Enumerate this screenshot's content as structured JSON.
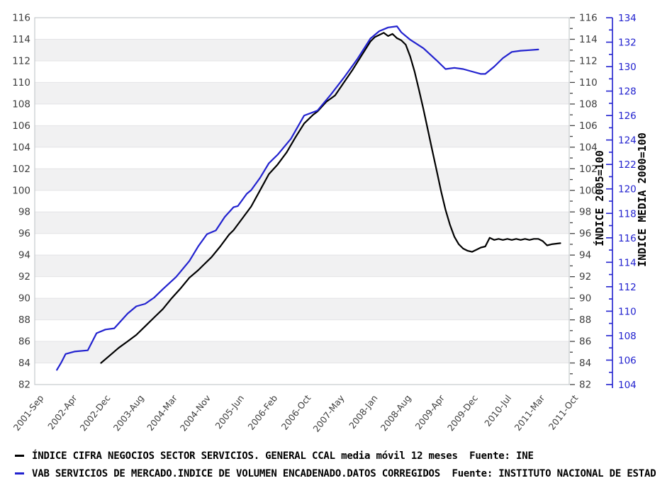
{
  "chart_data": {
    "type": "line",
    "title": "",
    "x_axis": {
      "labels": [
        "2001-Sep",
        "2002-Apr",
        "2002-Dec",
        "2003-Aug",
        "2004-Mar",
        "2004-Nov",
        "2005-Jun",
        "2006-Feb",
        "2006-Oct",
        "2007-May",
        "2008-Jan",
        "2008-Aug",
        "2009-Apr",
        "2009-Dec",
        "2010-Jul",
        "2011-Mar",
        "2011-Oct"
      ],
      "months_total": 121,
      "label_rotation_deg": -52
    },
    "left_axis": {
      "min": 82,
      "max": 116,
      "tick_step": 2,
      "ticks": [
        116,
        114,
        112,
        110,
        108,
        106,
        104,
        102,
        100,
        98,
        96,
        94,
        92,
        90,
        88,
        86,
        84,
        82
      ]
    },
    "right_axis": {
      "min": 82,
      "max": 116,
      "tick_step": 2,
      "ticks": [
        116,
        114,
        112,
        110,
        108,
        106,
        104,
        102,
        100,
        98,
        96,
        94,
        92,
        90,
        88,
        86,
        84,
        82
      ],
      "title": "ÍNDICE 2005=100"
    },
    "right_axis2": {
      "min": 104,
      "max": 134,
      "tick_step": 2,
      "ticks": [
        134,
        132,
        130,
        128,
        126,
        124,
        122,
        120,
        118,
        116,
        114,
        112,
        110,
        108,
        106,
        104
      ],
      "title": "INDICE MEDIA 2000=100",
      "color": "#2222cf"
    },
    "series": [
      {
        "name": "ÍNDICE CIFRA NEGOCIOS SECTOR SERVICIOS. GENERAL CCAL media móvil 12 meses",
        "source": "Fuente: INE",
        "color": "#000000",
        "axis": "left",
        "points": [
          [
            15,
            84.0
          ],
          [
            17,
            84.7
          ],
          [
            19,
            85.4
          ],
          [
            21,
            86.0
          ],
          [
            23,
            86.6
          ],
          [
            25,
            87.4
          ],
          [
            27,
            88.2
          ],
          [
            29,
            89.0
          ],
          [
            31,
            90.0
          ],
          [
            33,
            90.9
          ],
          [
            35,
            91.9
          ],
          [
            37,
            92.6
          ],
          [
            38,
            93.0
          ],
          [
            40,
            93.8
          ],
          [
            42,
            94.8
          ],
          [
            44,
            95.9
          ],
          [
            45,
            96.3
          ],
          [
            47,
            97.4
          ],
          [
            49,
            98.5
          ],
          [
            51,
            100.0
          ],
          [
            53,
            101.5
          ],
          [
            55,
            102.4
          ],
          [
            57,
            103.5
          ],
          [
            59,
            104.9
          ],
          [
            61,
            106.2
          ],
          [
            63,
            107.0
          ],
          [
            64,
            107.3
          ],
          [
            66,
            108.2
          ],
          [
            68,
            108.8
          ],
          [
            70,
            110.0
          ],
          [
            72,
            111.2
          ],
          [
            74,
            112.5
          ],
          [
            76,
            113.8
          ],
          [
            77,
            114.2
          ],
          [
            78,
            114.4
          ],
          [
            79,
            114.6
          ],
          [
            80,
            114.3
          ],
          [
            81,
            114.5
          ],
          [
            82,
            114.1
          ],
          [
            83,
            113.9
          ],
          [
            84,
            113.5
          ],
          [
            85,
            112.4
          ],
          [
            86,
            111.0
          ],
          [
            87,
            109.3
          ],
          [
            88,
            107.5
          ],
          [
            89,
            105.6
          ],
          [
            90,
            103.7
          ],
          [
            91,
            101.8
          ],
          [
            92,
            99.9
          ],
          [
            93,
            98.2
          ],
          [
            94,
            96.8
          ],
          [
            95,
            95.7
          ],
          [
            96,
            95.0
          ],
          [
            97,
            94.6
          ],
          [
            98,
            94.4
          ],
          [
            99,
            94.3
          ],
          [
            100,
            94.5
          ],
          [
            101,
            94.7
          ],
          [
            102,
            94.8
          ],
          [
            103,
            95.6
          ],
          [
            104,
            95.4
          ],
          [
            105,
            95.5
          ],
          [
            106,
            95.4
          ],
          [
            107,
            95.5
          ],
          [
            108,
            95.4
          ],
          [
            109,
            95.5
          ],
          [
            110,
            95.4
          ],
          [
            111,
            95.5
          ],
          [
            112,
            95.4
          ],
          [
            113,
            95.5
          ],
          [
            114,
            95.5
          ],
          [
            115,
            95.3
          ],
          [
            116,
            94.9
          ],
          [
            117,
            95.0
          ],
          [
            119,
            95.1
          ]
        ]
      },
      {
        "name": "VAB SERVICIOS DE MERCADO.INDICE DE VOLUMEN ENCADENADO.DATOS CORREGIDOS",
        "source": "Fuente: INSTITUTO NACIONAL DE ESTAD",
        "color": "#2222cf",
        "axis": "right2",
        "points": [
          [
            5,
            105.2
          ],
          [
            6,
            105.8
          ],
          [
            7,
            106.5
          ],
          [
            9,
            106.7
          ],
          [
            12,
            106.8
          ],
          [
            13,
            107.5
          ],
          [
            14,
            108.2
          ],
          [
            16,
            108.5
          ],
          [
            18,
            108.6
          ],
          [
            21,
            109.8
          ],
          [
            23,
            110.4
          ],
          [
            25,
            110.6
          ],
          [
            27,
            111.1
          ],
          [
            29,
            111.8
          ],
          [
            32,
            112.8
          ],
          [
            35,
            114.1
          ],
          [
            37,
            115.3
          ],
          [
            39,
            116.3
          ],
          [
            41,
            116.6
          ],
          [
            43,
            117.7
          ],
          [
            45,
            118.5
          ],
          [
            46,
            118.6
          ],
          [
            48,
            119.6
          ],
          [
            49,
            119.9
          ],
          [
            51,
            120.9
          ],
          [
            53,
            122.1
          ],
          [
            55,
            122.8
          ],
          [
            58,
            124.1
          ],
          [
            61,
            126.0
          ],
          [
            64,
            126.4
          ],
          [
            67,
            127.7
          ],
          [
            70,
            129.1
          ],
          [
            73,
            130.6
          ],
          [
            76,
            132.3
          ],
          [
            78,
            132.9
          ],
          [
            80,
            133.2
          ],
          [
            82,
            133.3
          ],
          [
            83,
            132.8
          ],
          [
            85,
            132.2
          ],
          [
            88,
            131.5
          ],
          [
            91,
            130.5
          ],
          [
            93,
            129.8
          ],
          [
            95,
            129.9
          ],
          [
            97,
            129.8
          ],
          [
            99,
            129.6
          ],
          [
            101,
            129.4
          ],
          [
            102,
            129.4
          ],
          [
            104,
            130.0
          ],
          [
            106,
            130.7
          ],
          [
            108,
            131.2
          ],
          [
            110,
            131.3
          ],
          [
            112,
            131.35
          ],
          [
            114,
            131.4
          ]
        ]
      }
    ],
    "legend": {
      "items": [
        {
          "label": "ÍNDICE CIFRA NEGOCIOS SECTOR SERVICIOS. GENERAL CCAL media móvil 12 meses  Fuente: INE",
          "color": "#000000"
        },
        {
          "label": "VAB SERVICIOS DE MERCADO.INDICE DE VOLUMEN ENCADENADO.DATOS CORREGIDOS  Fuente: INSTITUTO NACIONAL DE ESTAD",
          "color": "#2222cf"
        }
      ]
    },
    "style": {
      "stripe_color": "#f1f1f2",
      "grid_color": "#e4e4e6",
      "border_color": "#c6cacd",
      "tick_color": "#444444",
      "blue": "#2222cf"
    }
  }
}
